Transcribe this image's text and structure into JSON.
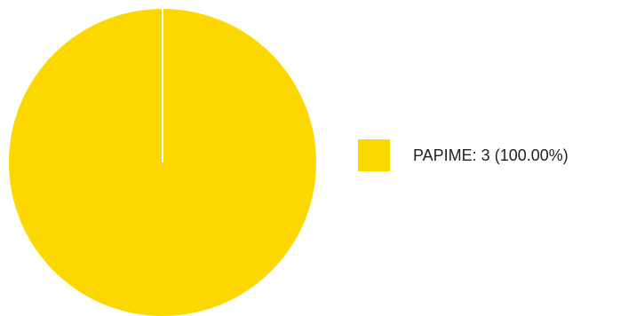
{
  "chart_data": {
    "type": "pie",
    "title": "",
    "slices": [
      {
        "label": "PAPIME",
        "value": 3,
        "percent": 100.0,
        "color": "#FDD700"
      }
    ],
    "legend": {
      "placement": "right",
      "entries": [
        "PAPIME: 3 (100.00%)"
      ]
    },
    "separator_color": "#FFFFFF"
  }
}
